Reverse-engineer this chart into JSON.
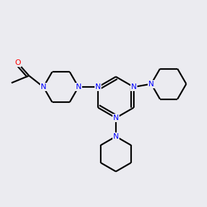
{
  "bg_color": "#ebebf0",
  "bond_color": "#000000",
  "N_color": "#0000ff",
  "O_color": "#ff0000",
  "line_width": 1.6,
  "fig_size": [
    3.0,
    3.0
  ],
  "dpi": 100,
  "xlim": [
    0,
    10
  ],
  "ylim": [
    0,
    10
  ]
}
